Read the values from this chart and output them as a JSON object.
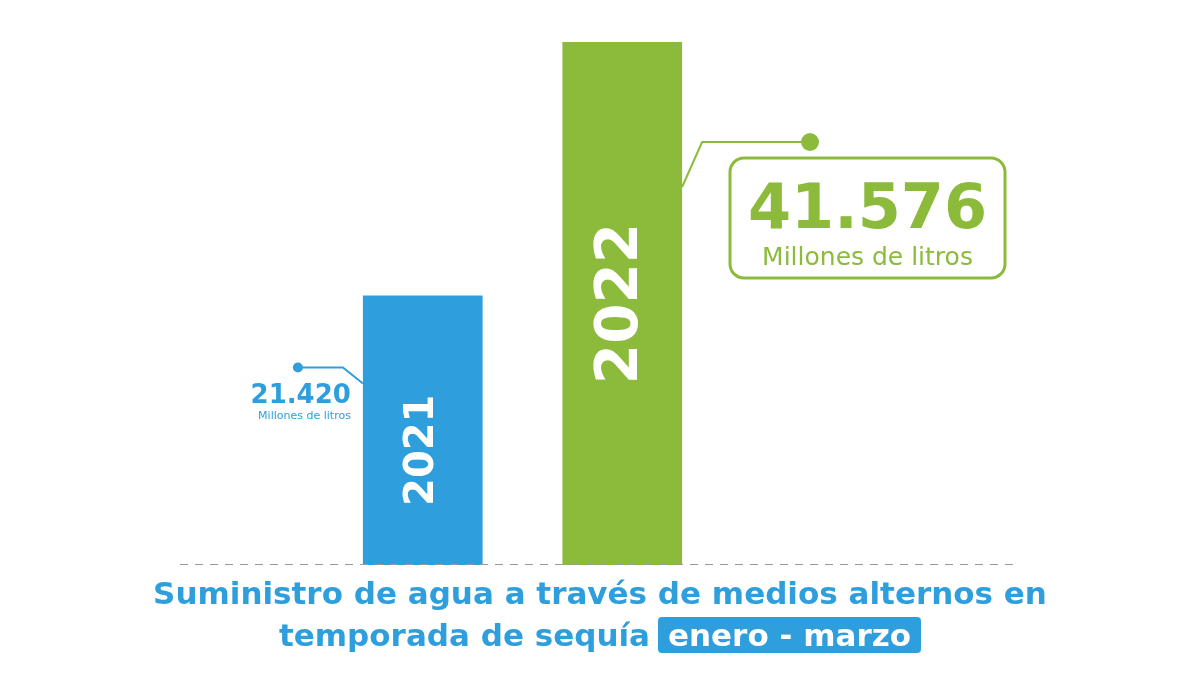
{
  "chart_data": {
    "type": "bar",
    "title": "Suministro de agua a través de medios alternos en temporada de sequía",
    "subtitle": "enero - marzo",
    "categories": [
      "2021",
      "2022"
    ],
    "values": [
      21420,
      41576
    ],
    "colors": [
      "#2e9fdc",
      "#8cbb3c"
    ],
    "value_labels": [
      "21.420",
      "41.576"
    ],
    "annotations": [
      "Millones de litros",
      "Millones de litros"
    ],
    "tick_labels": false
  }
}
